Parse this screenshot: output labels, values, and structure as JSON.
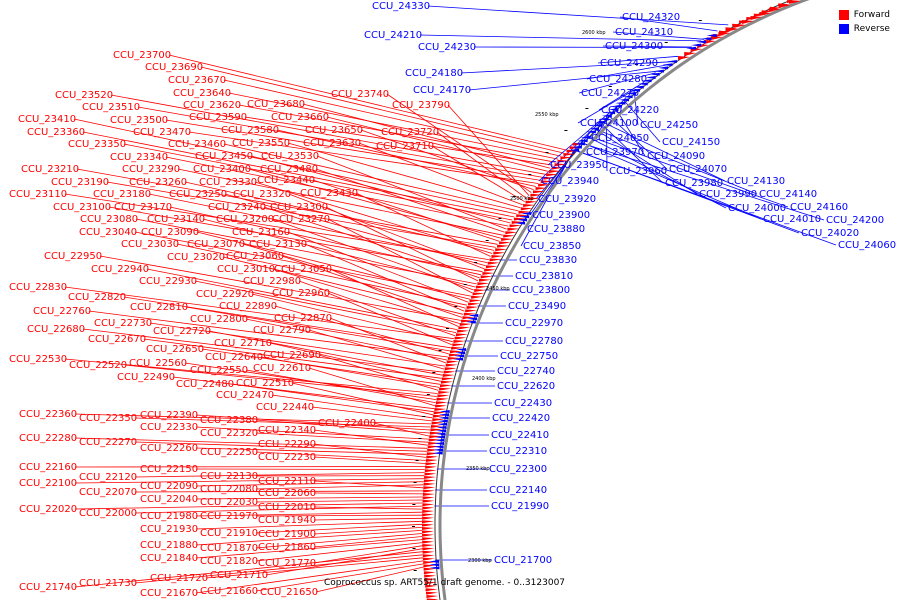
{
  "legend": {
    "forward_label": "Forward",
    "reverse_label": "Reverse",
    "forward_color": "#ff0000",
    "reverse_color": "#0000ff"
  },
  "caption": "Coprococcus sp. ART55/1 draft genome. - 0..3123007",
  "scale_ticks": [
    {
      "label": "2600 kbp"
    },
    {
      "label": "2550 kbp"
    },
    {
      "label": "2500 kbp"
    },
    {
      "label": "2450 kbp"
    },
    {
      "label": "2400 kbp"
    },
    {
      "label": "2350 kbp"
    },
    {
      "label": "2300 kbp"
    }
  ],
  "forward_genes": [
    "CCU_23700",
    "CCU_23690",
    "CCU_23670",
    "CCU_23640",
    "CCU_23620",
    "CCU_23590",
    "CCU_23680",
    "CCU_23660",
    "CCU_23520",
    "CCU_23510",
    "CCU_23500",
    "CCU_23470",
    "CCU_23580",
    "CCU_23650",
    "CCU_23740",
    "CCU_23790",
    "CCU_23720",
    "CCU_23710",
    "CCU_23630",
    "CCU_23550",
    "CCU_23460",
    "CCU_23410",
    "CCU_23360",
    "CCU_23350",
    "CCU_23450",
    "CCU_23340",
    "CCU_23530",
    "CCU_23480",
    "CCU_23290",
    "CCU_23400",
    "CCU_23440",
    "CCU_23210",
    "CCU_23190",
    "CCU_23260",
    "CCU_23330",
    "CCU_23430",
    "CCU_23110",
    "CCU_23180",
    "CCU_23250",
    "CCU_23320",
    "CCU_23100",
    "CCU_23170",
    "CCU_23240",
    "CCU_23300",
    "CCU_23080",
    "CCU_23140",
    "CCU_23200",
    "CCU_23270",
    "CCU_23040",
    "CCU_23090",
    "CCU_23160",
    "CCU_23030",
    "CCU_23070",
    "CCU_23130",
    "CCU_23020",
    "CCU_23060",
    "CCU_22950",
    "CCU_23010",
    "CCU_23050",
    "CCU_22940",
    "CCU_22930",
    "CCU_22980",
    "CCU_22830",
    "CCU_22920",
    "CCU_22960",
    "CCU_22820",
    "CCU_22810",
    "CCU_22890",
    "CCU_22760",
    "CCU_22800",
    "CCU_22870",
    "CCU_22730",
    "CCU_22790",
    "CCU_22680",
    "CCU_22720",
    "CCU_22670",
    "CCU_22710",
    "CCU_22650",
    "CCU_22640",
    "CCU_22690",
    "CCU_22530",
    "CCU_22520",
    "CCU_22560",
    "CCU_22550",
    "CCU_22610",
    "CCU_22490",
    "CCU_22480",
    "CCU_22510",
    "CCU_22470",
    "CCU_22440",
    "CCU_22360",
    "CCU_22350",
    "CCU_22390",
    "CCU_22380",
    "CCU_22400",
    "CCU_22330",
    "CCU_22320",
    "CCU_22340",
    "CCU_22280",
    "CCU_22270",
    "CCU_22260",
    "CCU_22290",
    "CCU_22250",
    "CCU_22230",
    "CCU_22160",
    "CCU_22150",
    "CCU_22120",
    "CCU_22130",
    "CCU_22100",
    "CCU_22090",
    "CCU_22080",
    "CCU_22110",
    "CCU_22070",
    "CCU_22060",
    "CCU_22040",
    "CCU_22030",
    "CCU_22020",
    "CCU_22000",
    "CCU_22010",
    "CCU_21980",
    "CCU_21970",
    "CCU_21940",
    "CCU_21930",
    "CCU_21910",
    "CCU_21900",
    "CCU_21880",
    "CCU_21870",
    "CCU_21860",
    "CCU_21840",
    "CCU_21820",
    "CCU_21770",
    "CCU_21710",
    "CCU_21740",
    "CCU_21730",
    "CCU_21720",
    "CCU_21670",
    "CCU_21660",
    "CCU_21650"
  ],
  "reverse_genes": [
    "CCU_24330",
    "CCU_24320",
    "CCU_24210",
    "CCU_24310",
    "CCU_24230",
    "CCU_24300",
    "CCU_24290",
    "CCU_24180",
    "CCU_24280",
    "CCU_24170",
    "CCU_24270",
    "CCU_24220",
    "CCU_24100",
    "CCU_24250",
    "CCU_24050",
    "CCU_24150",
    "CCU_23970",
    "CCU_24090",
    "CCU_23950",
    "CCU_24070",
    "CCU_23960",
    "CCU_24130",
    "CCU_23980",
    "CCU_23940",
    "CCU_23990",
    "CCU_24140",
    "CCU_23920",
    "CCU_24000",
    "CCU_24160",
    "CCU_24010",
    "CCU_24200",
    "CCU_23900",
    "CCU_24020",
    "CCU_23880",
    "CCU_24060",
    "CCU_23850",
    "CCU_23830",
    "CCU_23810",
    "CCU_23800",
    "CCU_23490",
    "CCU_22970",
    "CCU_22780",
    "CCU_22750",
    "CCU_22740",
    "CCU_22620",
    "CCU_22430",
    "CCU_22420",
    "CCU_22410",
    "CCU_22310",
    "CCU_22300",
    "CCU_22140",
    "CCU_21990",
    "CCU_21700"
  ]
}
